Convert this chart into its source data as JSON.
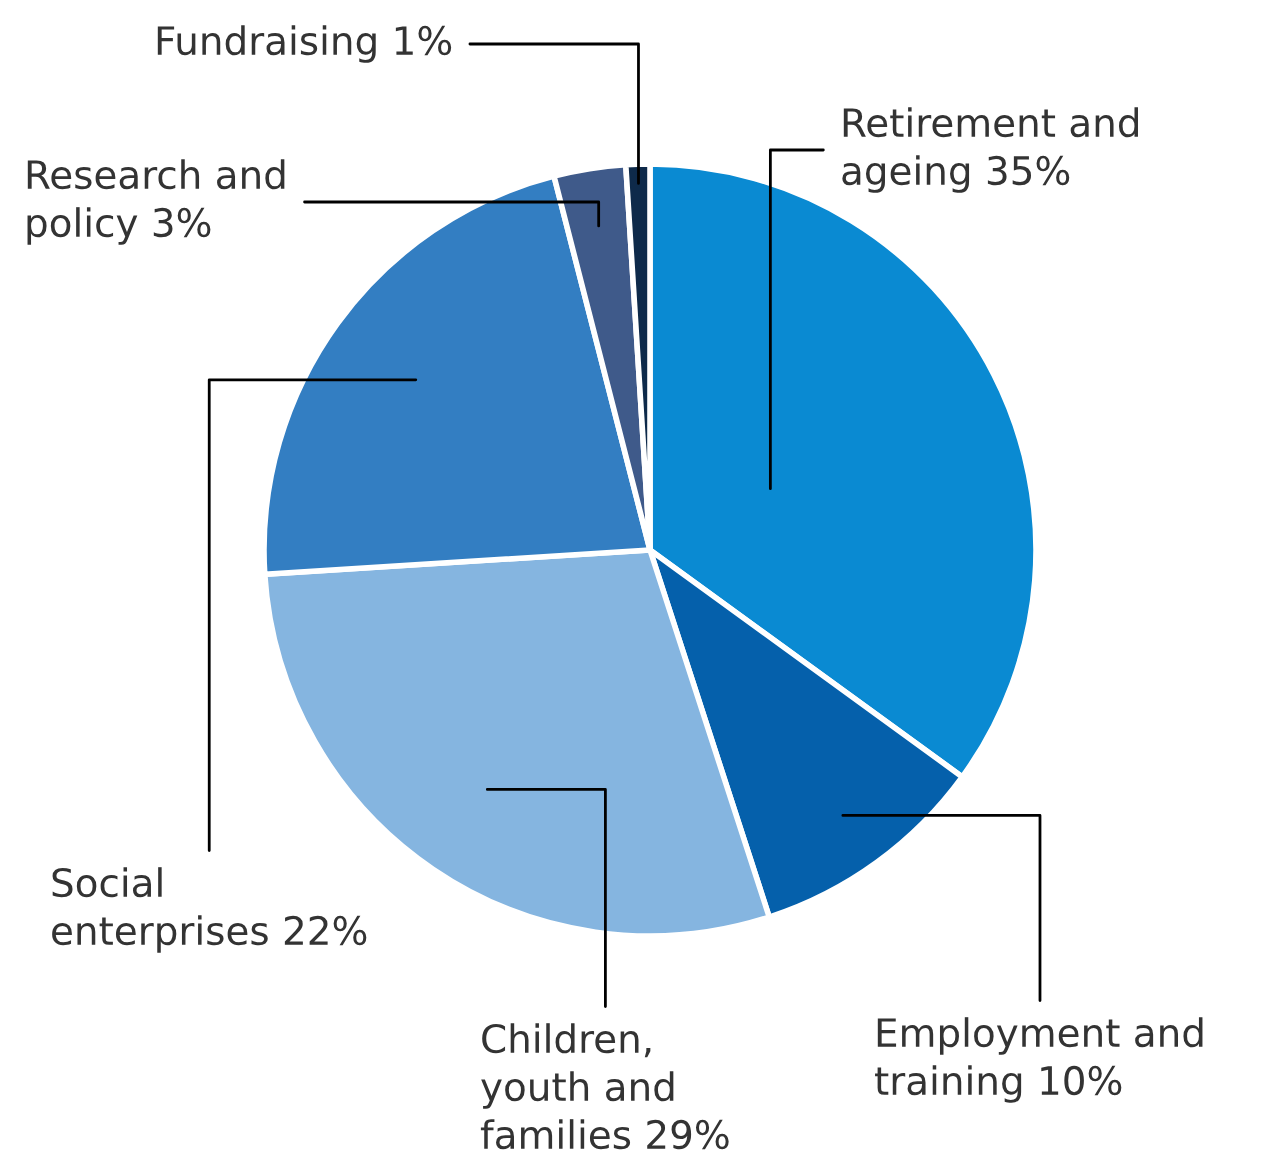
{
  "chart_data": {
    "type": "pie",
    "categories": [
      "Retirement and\nageing",
      "Employment and\ntraining",
      "Children,\nyouth and\nfamilies",
      "Social\nenterprises",
      "Research and\npolicy",
      "Fundraising"
    ],
    "values": [
      35,
      10,
      29,
      22,
      3,
      1
    ],
    "value_labels": [
      "35%",
      "10%",
      "29%",
      "22%",
      "3%",
      "1%"
    ],
    "colors": [
      "#0a8ad2",
      "#0560ab",
      "#85b5e0",
      "#337ec2",
      "#3f5a8a",
      "#0e2a4a"
    ]
  }
}
